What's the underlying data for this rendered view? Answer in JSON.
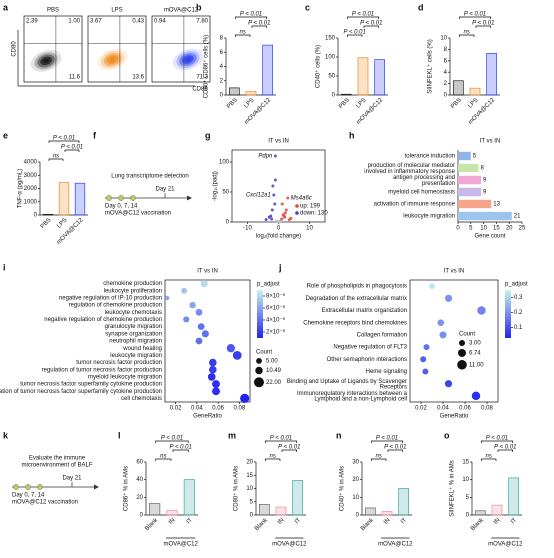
{
  "figure": {
    "a": {
      "label": "a",
      "y_label": "CD80",
      "x_label": "CD86",
      "plots": [
        {
          "title": "PBS",
          "color": "#1a1a1a",
          "quadrants": [
            "2.39",
            "1.00",
            "11.6"
          ]
        },
        {
          "title": "LPS",
          "color": "#f08a1c",
          "quadrants": [
            "3.67",
            "0.43",
            "13.6"
          ]
        },
        {
          "title": "mOVA@C12",
          "color": "#2b3ff0",
          "quadrants": [
            "0.94",
            "7.80",
            "71.3"
          ]
        }
      ]
    },
    "f": {
      "label": "f",
      "top": [
        "Lung transcriptome detection"
      ],
      "day_end": "Day 21",
      "days": "Day 0, 7, 14",
      "vaccination": "mOVA@C12 vaccination"
    },
    "k": {
      "label": "k",
      "top": [
        "Evaluate the immune",
        "microenvironment of BALF"
      ],
      "day_end": "Day 21",
      "days": "Day 0, 7, 14",
      "vaccination": "mOVA@C12 vaccination"
    }
  },
  "chart_data": [
    {
      "type": "bar",
      "label": "b",
      "ylabel": "CD80⁺ CD86⁺ cells (%)",
      "categories": [
        "PBS",
        "LPS",
        "mOVA@C12"
      ],
      "values": [
        1.0,
        0.5,
        7.0
      ],
      "colors": [
        "#222222",
        "#f08a1c",
        "#2b3ff0"
      ],
      "ylim": [
        0,
        8
      ],
      "yticks": [
        0,
        2,
        4,
        6,
        8
      ],
      "annotations": [
        "ns",
        "P < 0.01",
        "P < 0.01"
      ]
    },
    {
      "type": "bar",
      "label": "c",
      "ylabel": "CD40⁺ cells (%)",
      "categories": [
        "PBS",
        "LPS",
        "mOVA@C12"
      ],
      "values": [
        2,
        98,
        93
      ],
      "colors": [
        "#222222",
        "#f08a1c",
        "#2b3ff0"
      ],
      "ylim": [
        0,
        150
      ],
      "yticks": [
        0,
        50,
        100,
        150
      ],
      "annotations": [
        "P < 0.01",
        "P < 0.01",
        "P < 0.01"
      ]
    },
    {
      "type": "bar",
      "label": "d",
      "ylabel": "SIINFEKL⁺ cells (%)",
      "categories": [
        "PBS",
        "LPS",
        "mOVA@C12"
      ],
      "values": [
        2.5,
        1.2,
        7.3
      ],
      "colors": [
        "#222222",
        "#f08a1c",
        "#2b3ff0"
      ],
      "ylim": [
        0,
        10
      ],
      "yticks": [
        0,
        2,
        4,
        6,
        8,
        10
      ],
      "annotations": [
        "ns",
        "P < 0.01",
        "P < 0.01"
      ]
    },
    {
      "type": "bar",
      "label": "e",
      "ylabel": "TNF-α (pg/mL)",
      "categories": [
        "PBS",
        "LPS",
        "mOVA@C12"
      ],
      "values": [
        50,
        2450,
        2400
      ],
      "colors": [
        "#222222",
        "#f08a1c",
        "#2b3ff0"
      ],
      "ylim": [
        0,
        4000
      ],
      "yticks": [
        0,
        1000,
        2000,
        3000,
        4000
      ],
      "annotations": [
        "ns",
        "P < 0.01",
        "P < 0.01"
      ]
    },
    {
      "type": "scatter",
      "label": "g",
      "title": "IT vs IN",
      "xlabel": "log₂(fold change)",
      "ylabel": "-log₁₀(padj)",
      "xlim": [
        -15,
        15
      ],
      "xticks": [
        -10,
        0,
        10
      ],
      "ylim": [
        0,
        120
      ],
      "yticks": [
        0,
        50,
        100
      ],
      "series": [
        {
          "color": "#bbbbbb",
          "x": [
            -0.5,
            0.3,
            0.6,
            -0.8,
            0.2,
            -0.3,
            0.8,
            -0.6
          ],
          "values": [
            1,
            0.5,
            1,
            0.8,
            0.3,
            0.6,
            1.2,
            0.2
          ]
        },
        {
          "name": "up: 199",
          "color": "#e0443c",
          "x": [
            1,
            1.5,
            2,
            2.5,
            3,
            1.2,
            4,
            2.2,
            1.8,
            3.5
          ],
          "values": [
            5,
            12,
            8,
            20,
            40,
            30,
            6,
            15,
            10,
            4
          ],
          "labels": [
            null,
            null,
            null,
            null,
            "Ms4a6c",
            null,
            null,
            null,
            null,
            null
          ]
        },
        {
          "name": "down: 130",
          "color": "#4040c8",
          "x": [
            -1,
            -1.5,
            -2,
            -2.5,
            -1.2,
            -3,
            -1.8,
            -2.2,
            -1,
            -4
          ],
          "values": [
            110,
            45,
            20,
            10,
            30,
            8,
            60,
            5,
            70,
            4
          ],
          "labels": [
            "Pdpn",
            "Cxcl12a1",
            null,
            null,
            null,
            null,
            null,
            null,
            null,
            null
          ]
        }
      ]
    },
    {
      "type": "barh",
      "label": "h",
      "title": "IT vs IN",
      "xlabel": "Gene count",
      "categories": [
        "tolerance induction",
        "production of molecular mediator involved in inflammatory response",
        "antigen processing and presentation",
        "myeloid cell homeostasis",
        "activation of immune response",
        "leukocyte migration"
      ],
      "values": [
        5,
        8,
        9,
        9,
        13,
        21
      ],
      "colors": [
        "#8fb4e6",
        "#c9e6a8",
        "#f2a6d4",
        "#c8b8ec",
        "#f4a58a",
        "#9cc4ec"
      ],
      "xlim": [
        0,
        25
      ],
      "xticks": [
        0,
        5,
        10,
        15,
        20,
        25
      ]
    },
    {
      "type": "dot",
      "label": "i",
      "title": "IT vs IN",
      "xlabel": "GeneRatio",
      "color_title": "p_adjust",
      "size_title": "Count",
      "categories": [
        "chemokine production",
        "leukocyte proliferation",
        "negative regulation of IP-10 production",
        "regulation of chemokine production",
        "leukocyte chemotaxis",
        "negative regulation of chemokine production",
        "granulocyte migration",
        "synapse organization",
        "neutrophil migration",
        "wound healing",
        "leukocyte migration",
        "tumor necrosis factor production",
        "regulation of tumor necrosis factor production",
        "myeloid leukocyte migration",
        "tumor necrosis factor superfamily cytokine production",
        "regulation of tumor necrosis factor superfamily cytokine production",
        "cell chemotaxis"
      ],
      "values": [
        0.047,
        0.028,
        0.012,
        0.036,
        0.042,
        0.03,
        0.044,
        0.048,
        0.042,
        0.072,
        0.078,
        0.055,
        0.055,
        0.054,
        0.058,
        0.058,
        0.085
      ],
      "counts": [
        9,
        5,
        2,
        7,
        8,
        6,
        8,
        9,
        8,
        14,
        16,
        11,
        11,
        11,
        12,
        12,
        18
      ],
      "p_adjust": [
        8e-06,
        7e-06,
        6e-06,
        6e-06,
        5e-06,
        5e-06,
        4e-06,
        4e-06,
        4e-06,
        3e-06,
        2e-06,
        2e-06,
        2e-06,
        1.5e-06,
        1.5e-06,
        1.5e-06,
        1e-06
      ],
      "xlim": [
        0.01,
        0.09
      ],
      "xticks": [
        0.02,
        0.04,
        0.06,
        0.08
      ],
      "colormap": [
        "#2222ee",
        "#c8f4f0"
      ],
      "clim": [
        1e-06,
        9e-06
      ],
      "cticks": [
        {
          "value": 2e-06,
          "label": "2×10⁻⁶"
        },
        {
          "value": 4e-06,
          "label": "4×10⁻⁶"
        },
        {
          "value": 6e-06,
          "label": "6×10⁻⁶"
        },
        {
          "value": 8e-06,
          "label": "8×10⁻⁶"
        }
      ],
      "size_legend": [
        {
          "value": 5,
          "label": "5.00"
        },
        10.49,
        {
          "value": 22,
          "label": "22.00"
        }
      ]
    },
    {
      "type": "dot",
      "label": "j",
      "title": "IT vs IN",
      "xlabel": "GeneRatio",
      "color_title": "p_adjust",
      "size_title": "Count",
      "categories": [
        "Role of phospholipids in phagocytosis",
        "Degradation of the extracellular matrix",
        "Extracellular matrix organization",
        "Chemokine receptors bind chemokines",
        "Collagen formation",
        "Negative regulation of FLT3",
        "Other semaphorin interactions",
        "Heme signaling",
        "Binding and Uptake of Ligands by Scavenger Receptors",
        "Immunoregulatory interactions between a Lymphoid and a non-Lymphoid cell"
      ],
      "values": [
        0.03,
        0.045,
        0.075,
        0.038,
        0.04,
        0.025,
        0.022,
        0.024,
        0.045,
        0.07
      ],
      "counts": [
        3,
        5,
        8,
        4,
        5,
        3,
        3,
        3,
        5,
        8
      ],
      "p_adjust": [
        0.33,
        0.2,
        0.18,
        0.2,
        0.2,
        0.15,
        0.12,
        0.12,
        0.08,
        0.05
      ],
      "xlim": [
        0.01,
        0.09
      ],
      "xticks": [
        0.02,
        0.04,
        0.06,
        0.08
      ],
      "colormap": [
        "#2222ee",
        "#c8f4f0"
      ],
      "clim": [
        0.03,
        0.35
      ],
      "cticks": [
        0.1,
        0.2,
        0.3
      ],
      "size_legend": [
        {
          "value": 3,
          "label": "3.00"
        },
        6.74,
        {
          "value": 11,
          "label": "11.00"
        }
      ]
    },
    {
      "type": "bar",
      "label": "l",
      "ylabel": "CD86⁺ % in AMs",
      "categories": [
        "Blank",
        "IN",
        "IT"
      ],
      "group_label": "mOVA@C12",
      "values": [
        13,
        5,
        40
      ],
      "colors": [
        "#666666",
        "#f08aa0",
        "#3aa8a0"
      ],
      "ylim": [
        0,
        60
      ],
      "yticks": [
        0,
        20,
        40,
        60
      ],
      "annotations": [
        "ns",
        "P < 0.01",
        "P < 0.01"
      ]
    },
    {
      "type": "bar",
      "label": "m",
      "ylabel": "CD80⁺ % in AMs",
      "categories": [
        "Blank",
        "IN",
        "IT"
      ],
      "group_label": "mOVA@C12",
      "values": [
        4,
        3,
        13
      ],
      "colors": [
        "#666666",
        "#f08aa0",
        "#3aa8a0"
      ],
      "ylim": [
        0,
        20
      ],
      "yticks": [
        0,
        5,
        10,
        15,
        20
      ],
      "annotations": [
        "ns",
        "P < 0.01",
        "P < 0.01"
      ]
    },
    {
      "type": "bar",
      "label": "n",
      "ylabel": "CD40⁺ % in AMs",
      "categories": [
        "Blank",
        "IN",
        "IT"
      ],
      "group_label": "mOVA@C12",
      "values": [
        4,
        2,
        15
      ],
      "colors": [
        "#666666",
        "#f08aa0",
        "#3aa8a0"
      ],
      "ylim": [
        0,
        30
      ],
      "yticks": [
        0,
        10,
        20,
        30
      ],
      "annotations": [
        "ns",
        "P < 0.01",
        "P < 0.01"
      ]
    },
    {
      "type": "bar",
      "label": "o",
      "ylabel": "SIINFEKL⁺ % in AMs",
      "categories": [
        "Blank",
        "IN",
        "IT"
      ],
      "group_label": "mOVA@C12",
      "values": [
        1.2,
        2.8,
        10.5
      ],
      "colors": [
        "#666666",
        "#f08aa0",
        "#3aa8a0"
      ],
      "ylim": [
        0,
        15
      ],
      "yticks": [
        0,
        5,
        10,
        15
      ],
      "annotations": [
        "ns",
        "P < 0.01",
        "P < 0.01"
      ]
    }
  ]
}
